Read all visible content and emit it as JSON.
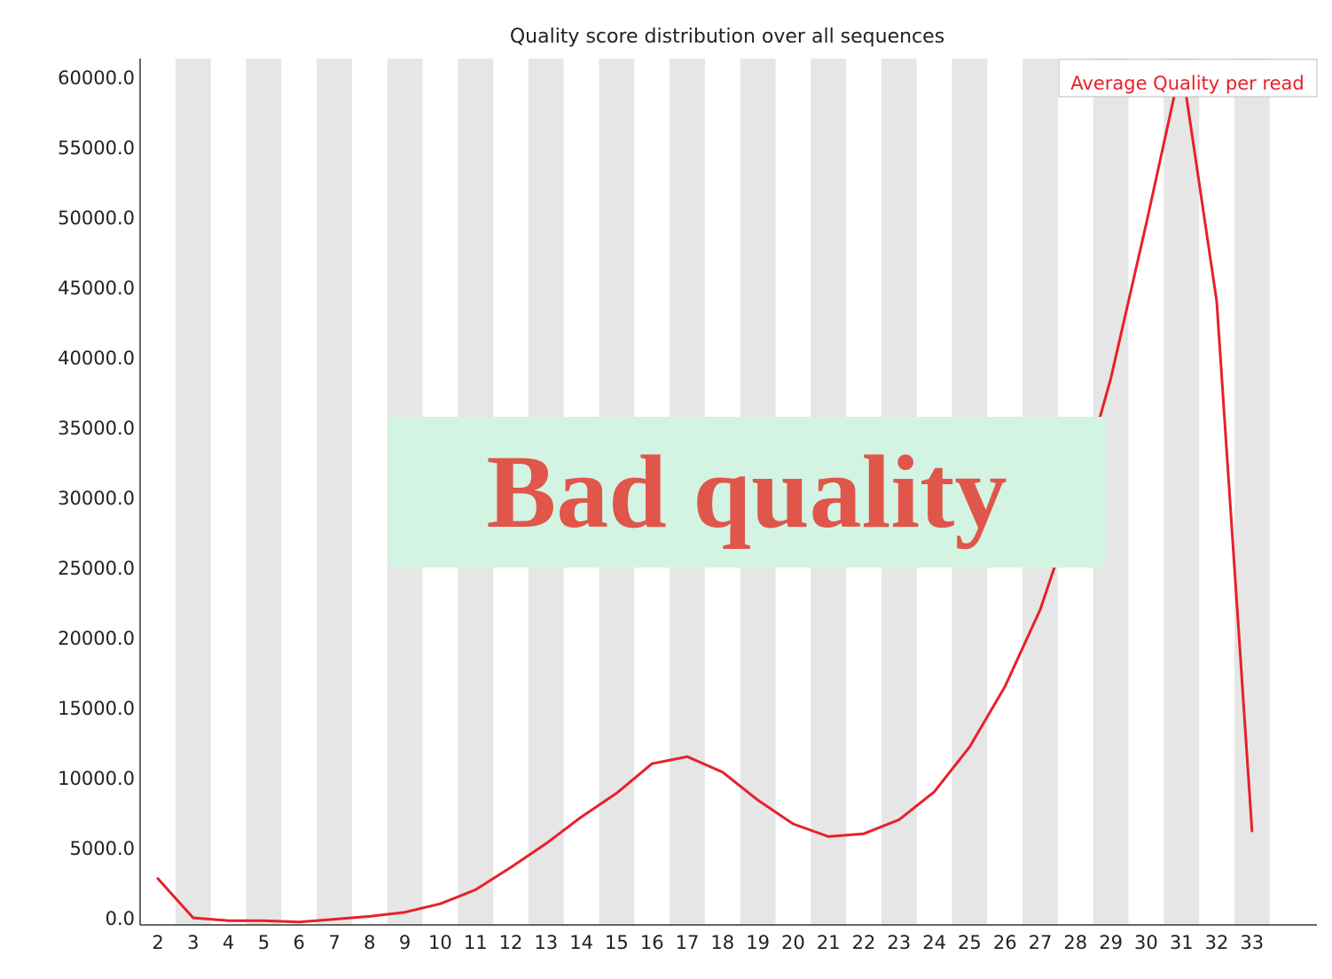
{
  "chart_data": {
    "type": "line",
    "title": "Quality score distribution over all sequences",
    "xlabel": "",
    "ylabel": "",
    "x": [
      2,
      3,
      4,
      5,
      6,
      7,
      8,
      9,
      10,
      11,
      12,
      13,
      14,
      15,
      16,
      17,
      18,
      19,
      20,
      21,
      22,
      23,
      24,
      25,
      26,
      27,
      28,
      29,
      30,
      31,
      32,
      33
    ],
    "series": [
      {
        "name": "Average Quality per read",
        "color": "#e8202a",
        "values": [
          2800,
          0,
          -200,
          -200,
          -300,
          -100,
          100,
          400,
          1000,
          2000,
          3600,
          5300,
          7200,
          8900,
          11000,
          11500,
          10400,
          8400,
          6700,
          5800,
          6000,
          7000,
          9000,
          12200,
          16500,
          22000,
          29500,
          38500,
          49500,
          61000,
          44000,
          6200
        ]
      }
    ],
    "ylim": [
      -500,
      61500
    ],
    "yticks": [
      "0.0",
      "5000.0",
      "10000.0",
      "15000.0",
      "20000.0",
      "25000.0",
      "30000.0",
      "35000.0",
      "40000.0",
      "45000.0",
      "50000.0",
      "55000.0",
      "60000.0"
    ],
    "ytick_values": [
      0,
      5000,
      10000,
      15000,
      20000,
      25000,
      30000,
      35000,
      40000,
      45000,
      50000,
      55000,
      60000
    ],
    "xticks": [
      "2",
      "3",
      "4",
      "5",
      "6",
      "7",
      "8",
      "9",
      "10",
      "11",
      "12",
      "13",
      "14",
      "15",
      "16",
      "17",
      "18",
      "19",
      "20",
      "21",
      "22",
      "23",
      "24",
      "25",
      "26",
      "27",
      "28",
      "29",
      "30",
      "31",
      "32",
      "33"
    ],
    "grid": "alternating-vertical-bands",
    "band_color": "#e6e6e6",
    "legend_placement": "top-right"
  },
  "overlay": {
    "text": "Bad quality",
    "background": "#d3f3e3",
    "color": "#e0564a"
  }
}
